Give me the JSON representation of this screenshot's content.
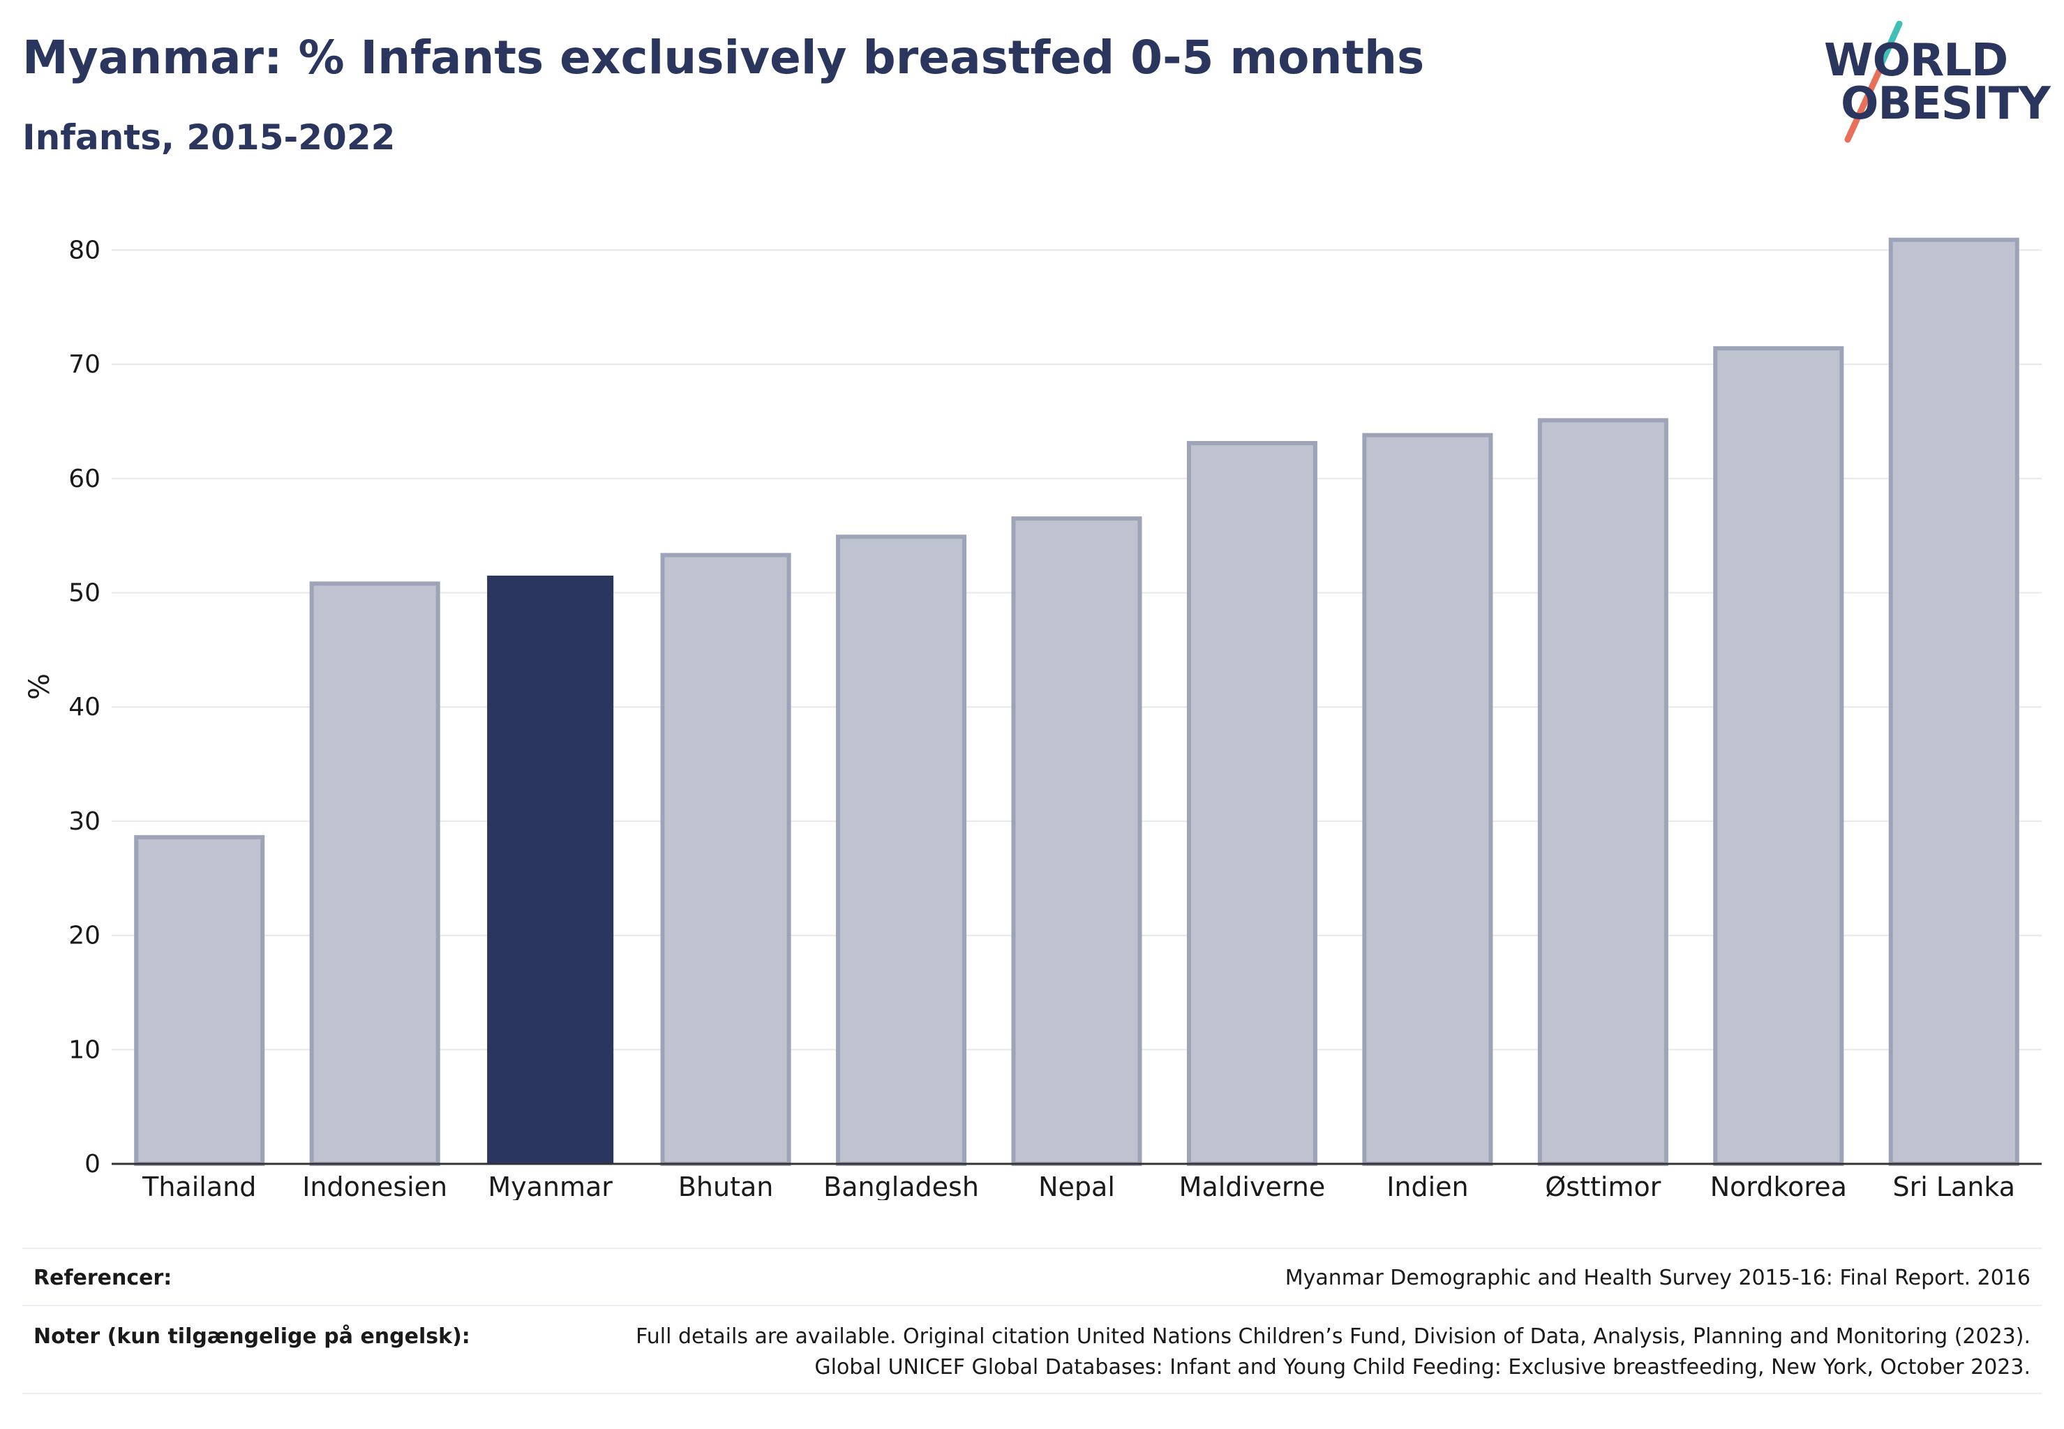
{
  "header": {
    "title": "Myanmar: % Infants exclusively breastfed 0-5 months",
    "subtitle": "Infants, 2015-2022"
  },
  "logo": {
    "line1": "WORLD",
    "line2": "OBESITY",
    "colors": {
      "text": "#2b365f",
      "slash_top": "#3fbfb8",
      "slash_bottom": "#e8705a"
    }
  },
  "chart_data": {
    "type": "bar",
    "categories": [
      "Thailand",
      "Indonesien",
      "Myanmar",
      "Bhutan",
      "Bangladesh",
      "Nepal",
      "Maldiverne",
      "Indien",
      "Østtimor",
      "Nordkorea",
      "Sri Lanka"
    ],
    "values": [
      28.6,
      50.8,
      51.5,
      53.3,
      54.9,
      56.5,
      63.1,
      63.8,
      65.1,
      71.4,
      80.9
    ],
    "highlight": "Myanmar",
    "ylabel": "%",
    "xlabel": "",
    "ylim": [
      0,
      85
    ],
    "yticks": [
      0,
      10,
      20,
      30,
      40,
      50,
      60,
      70,
      80
    ],
    "grid": true,
    "colors": {
      "bar": "#bfc3cf",
      "bar_outline": "#9ea4b8",
      "highlight": "#2b365f",
      "grid": "#e6e8ee",
      "axis": "#333333"
    }
  },
  "footer": {
    "references_label": "Referencer:",
    "references_text": "Myanmar Demographic and Health Survey 2015-16: Final Report. 2016",
    "notes_label": "Noter (kun tilgængelige på engelsk):",
    "notes_line1": "Full details are available. Original citation United Nations Children’s Fund, Division of Data, Analysis, Planning and Monitoring (2023).",
    "notes_line2": "Global UNICEF Global Databases: Infant and Young Child Feeding: Exclusive breastfeeding, New York, October 2023."
  }
}
